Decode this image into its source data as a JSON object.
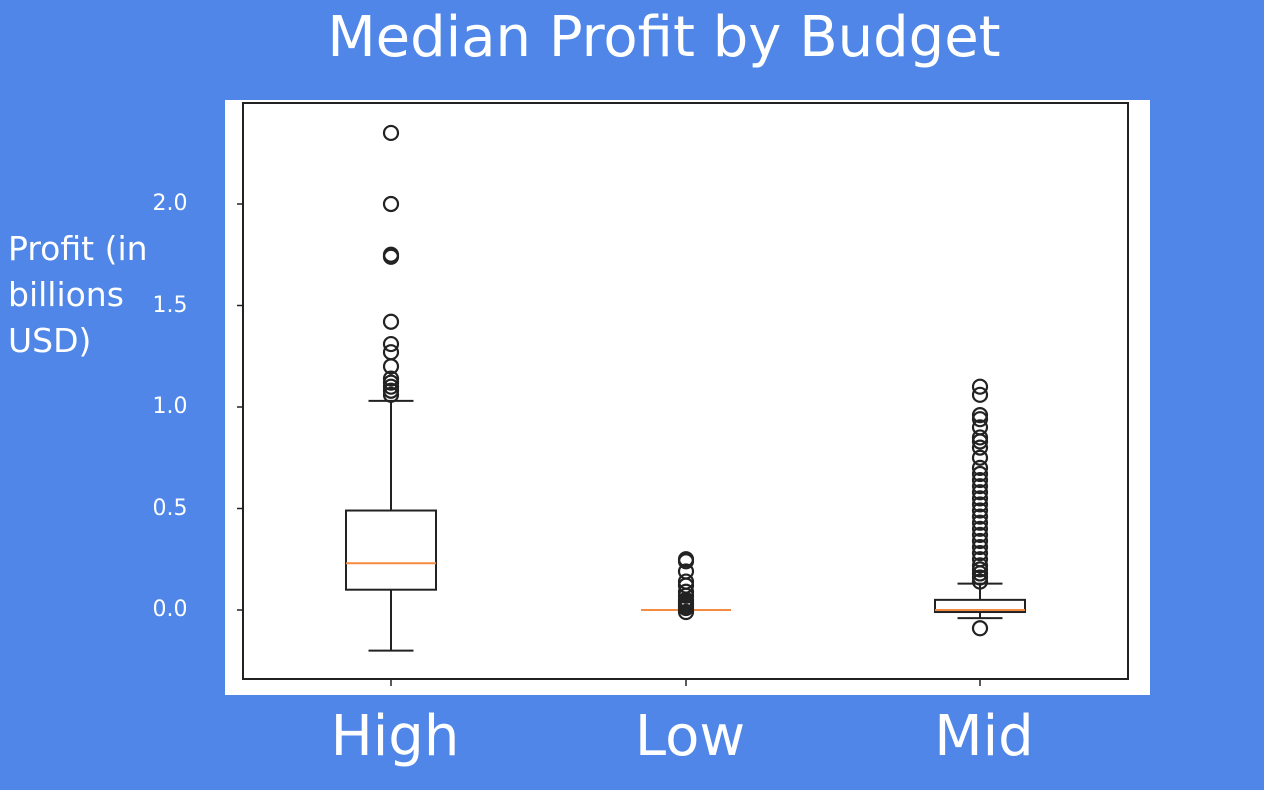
{
  "chart_data": {
    "type": "box",
    "title": "Median Profit by Budget",
    "ylabel": "Profit (in billions USD)",
    "xlabel": "",
    "categories": [
      "High",
      "Low",
      "Mid"
    ],
    "ylim": [
      -0.33,
      2.45
    ],
    "yticks": [
      0.0,
      0.5,
      1.0,
      1.5,
      2.0
    ],
    "ytick_labels": [
      "0.0",
      "0.5",
      "1.0",
      "1.5",
      "2.0"
    ],
    "colors": {
      "background": "#4f86e8",
      "box": "#222222",
      "median": "#f58a42",
      "text": "#ffffff"
    },
    "boxes": [
      {
        "name": "High",
        "whisker_low": -0.2,
        "q1": 0.1,
        "median": 0.23,
        "q3": 0.49,
        "whisker_high": 1.03,
        "outliers": [
          1.06,
          1.08,
          1.1,
          1.12,
          1.14,
          1.2,
          1.27,
          1.31,
          1.42,
          1.74,
          1.75,
          2.0,
          2.35
        ]
      },
      {
        "name": "Low",
        "whisker_low": 0.0,
        "q1": 0.0,
        "median": 0.0,
        "q3": 0.0,
        "whisker_high": 0.0,
        "outliers": [
          -0.01,
          0.01,
          0.02,
          0.03,
          0.04,
          0.05,
          0.07,
          0.09,
          0.12,
          0.14,
          0.19,
          0.24,
          0.25
        ]
      },
      {
        "name": "Mid",
        "whisker_low": -0.04,
        "q1": -0.01,
        "median": 0.0,
        "q3": 0.05,
        "whisker_high": 0.13,
        "outliers": [
          -0.09,
          0.14,
          0.16,
          0.18,
          0.2,
          0.22,
          0.25,
          0.28,
          0.31,
          0.34,
          0.37,
          0.4,
          0.43,
          0.46,
          0.49,
          0.52,
          0.55,
          0.58,
          0.61,
          0.64,
          0.67,
          0.7,
          0.75,
          0.8,
          0.83,
          0.85,
          0.9,
          0.94,
          0.96,
          1.06,
          1.1
        ]
      }
    ]
  }
}
